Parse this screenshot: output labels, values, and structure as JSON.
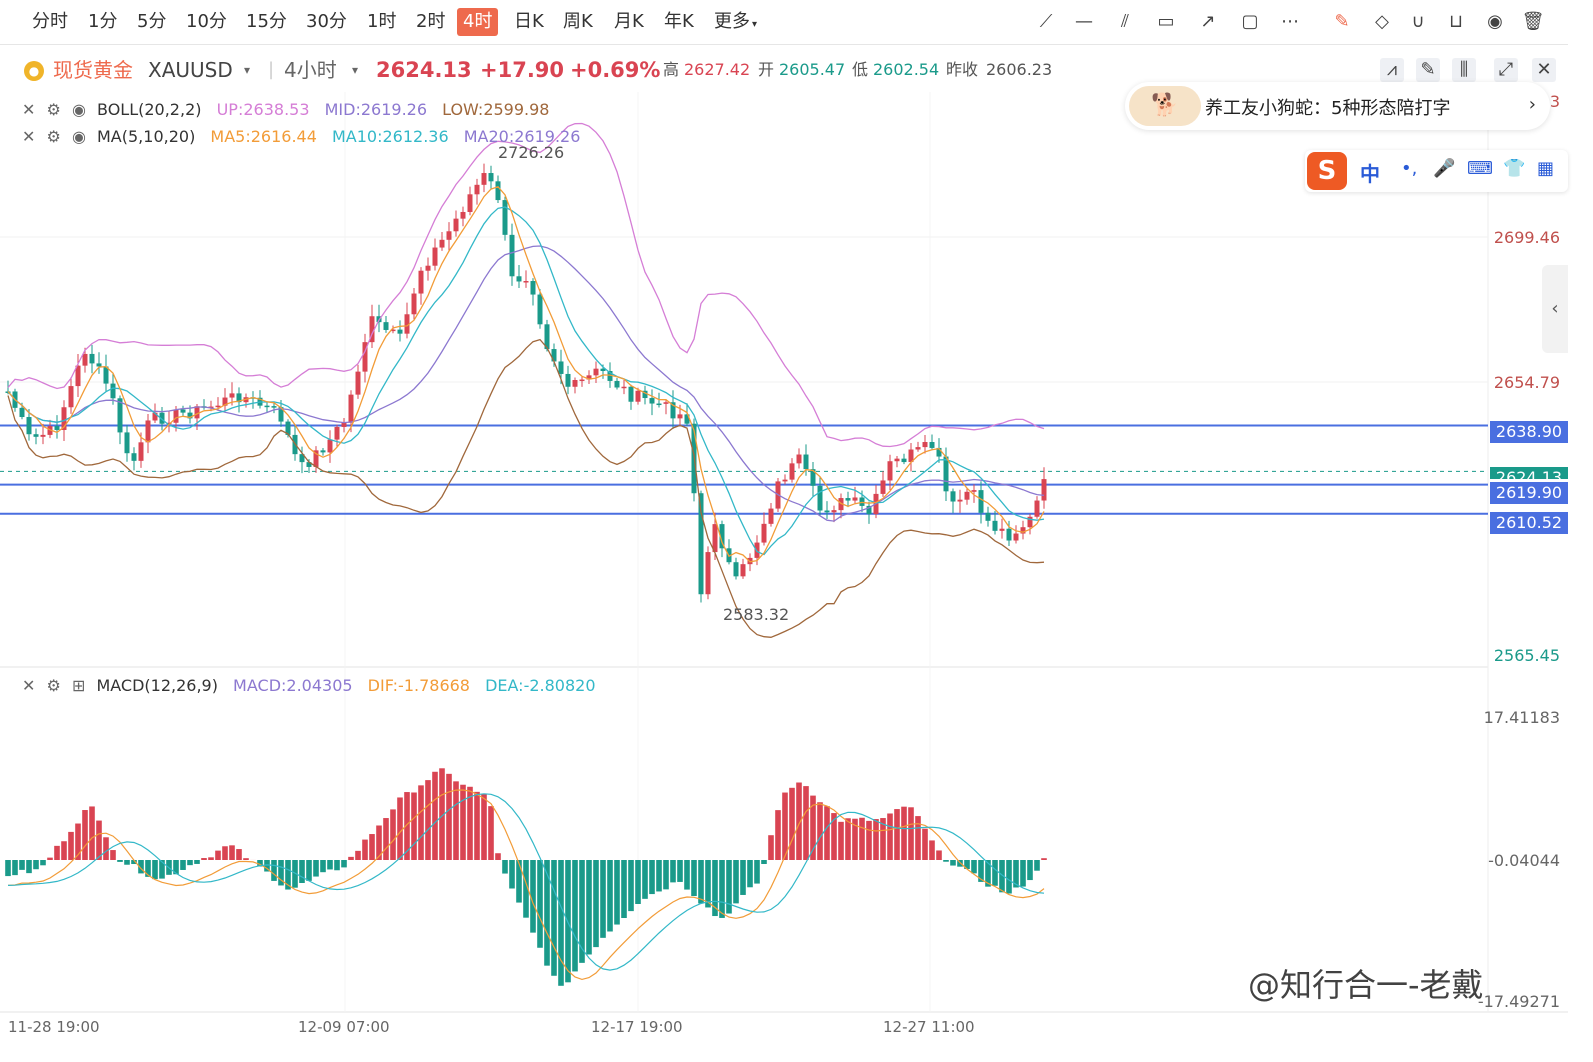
{
  "timeframes": [
    "分时",
    "1分",
    "5分",
    "10分",
    "15分",
    "30分",
    "1时",
    "2时",
    "4时",
    "日K",
    "周K",
    "月K",
    "年K",
    "更多"
  ],
  "active_timeframe": "4时",
  "more_chevron": "chevron-down-icon",
  "tools": [
    "line-tool-icon",
    "horizontal-line-icon",
    "parallel-lines-icon",
    "rectangle-icon",
    "arrow-icon",
    "comment-icon",
    "more-dots-icon",
    "edit-icon",
    "eraser-icon",
    "magnet-icon",
    "lock-icon",
    "eye-icon",
    "trash-icon"
  ],
  "info": {
    "symbol_cn": "现货黄金",
    "symbol_code": "XAUUSD",
    "period": "4小时",
    "price": "2624.13",
    "change": "+17.90",
    "change_pct": "+0.69%",
    "high_label": "高",
    "high": "2627.42",
    "open_label": "开",
    "open": "2605.47",
    "low_label": "低",
    "low": "2602.54",
    "prev_close_label": "昨收",
    "prev_close": "2606.23"
  },
  "colors": {
    "up": "#d94452",
    "down": "#1a9a8a",
    "boll_up": "#d57ed6",
    "boll_low": "#a0683c",
    "ma5": "#f29c38",
    "ma10": "#33b8c8",
    "ma20": "#8c78d0",
    "hline": "#4a6fe0",
    "active": "#ee6a4d"
  },
  "indicators": {
    "boll": {
      "name": "BOLL(20,2,2)",
      "up": "UP:2638.53",
      "mid": "MID:2619.26",
      "low": "LOW:2599.98"
    },
    "ma": {
      "name": "MA(5,10,20)",
      "ma5": "MA5:2616.44",
      "ma10": "MA10:2612.36",
      "ma20": "MA20:2619.26"
    },
    "macd": {
      "name": "MACD(12,26,9)",
      "macd": "MACD:2.04305",
      "dif": "DIF:-1.78668",
      "dea": "DEA:-2.80820"
    }
  },
  "price_axis": [
    "2699.46",
    "2654.79",
    "2565.45"
  ],
  "macd_axis": [
    "17.41183",
    "-0.04044",
    "-17.49271"
  ],
  "price_lines": [
    "2638.90",
    "2619.90",
    "2610.52"
  ],
  "current_price_tag": "2624.13",
  "right_partial_value": "3",
  "extremes": {
    "high": "2726.26",
    "low": "2583.32"
  },
  "time_axis": [
    "11-28 19:00",
    "12-09 07:00",
    "12-17 19:00",
    "12-27 11:00"
  ],
  "ad": {
    "text": "养工友小狗蛇：5种形态陪打字",
    "chevron": "chevron-right-icon"
  },
  "ime": {
    "lang": "中",
    "icons": [
      "punctuation-icon",
      "mic-icon",
      "keyboard-icon",
      "skin-icon",
      "apps-icon"
    ]
  },
  "watermark": "@知行合一-老戴"
}
